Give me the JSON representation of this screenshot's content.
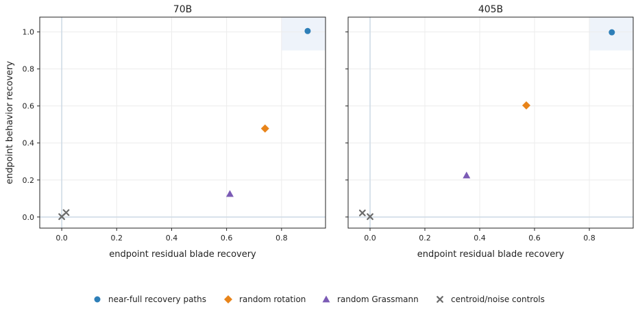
{
  "figure": {
    "legend": [
      {
        "label": "near-full recovery paths",
        "marker": "circle",
        "color": "#2e7fb8"
      },
      {
        "label": "random rotation",
        "marker": "diamond",
        "color": "#e8841a"
      },
      {
        "label": "random Grassmann",
        "marker": "triangle",
        "color": "#7b5bb5"
      },
      {
        "label": "centroid/noise controls",
        "marker": "x",
        "color": "#6b6b6b"
      }
    ],
    "legend_placement": "bottom-center"
  },
  "chart_data": [
    {
      "type": "scatter",
      "title": "70B",
      "xlabel": "endpoint residual blade recovery",
      "ylabel": "endpoint behavior recovery",
      "xlim": [
        -0.08,
        0.96
      ],
      "ylim": [
        -0.06,
        1.08
      ],
      "xticks": [
        "0.0",
        "0.2",
        "0.4",
        "0.6",
        "0.8"
      ],
      "yticks": [
        "0.0",
        "0.2",
        "0.4",
        "0.6",
        "0.8",
        "1.0"
      ],
      "xtick_values": [
        0.0,
        0.2,
        0.4,
        0.6,
        0.8
      ],
      "ytick_values": [
        0.0,
        0.2,
        0.4,
        0.6,
        0.8,
        1.0
      ],
      "grid": true,
      "highlight_region": {
        "x": [
          0.8,
          0.96
        ],
        "y": [
          0.9,
          1.08
        ]
      },
      "reference_lines": {
        "x": 0,
        "y": 0
      },
      "series": [
        {
          "name": "near-full recovery paths",
          "points": [
            [
              0.895,
              1.005
            ]
          ]
        },
        {
          "name": "random rotation",
          "points": [
            [
              0.74,
              0.478
            ]
          ]
        },
        {
          "name": "random Grassmann",
          "points": [
            [
              0.612,
              0.125
            ]
          ]
        },
        {
          "name": "centroid/noise controls",
          "points": [
            [
              0.0,
              0.002
            ],
            [
              0.016,
              0.024
            ]
          ]
        }
      ]
    },
    {
      "type": "scatter",
      "title": "405B",
      "xlabel": "endpoint residual blade recovery",
      "ylabel": "",
      "xlim": [
        -0.08,
        0.96
      ],
      "ylim": [
        -0.06,
        1.08
      ],
      "xticks": [
        "0.0",
        "0.2",
        "0.4",
        "0.6",
        "0.8"
      ],
      "yticks": [],
      "xtick_values": [
        0.0,
        0.2,
        0.4,
        0.6,
        0.8
      ],
      "ytick_values": [
        0.0,
        0.2,
        0.4,
        0.6,
        0.8,
        1.0
      ],
      "grid": true,
      "highlight_region": {
        "x": [
          0.8,
          0.96
        ],
        "y": [
          0.9,
          1.08
        ]
      },
      "reference_lines": {
        "x": 0,
        "y": 0
      },
      "series": [
        {
          "name": "near-full recovery paths",
          "points": [
            [
              0.882,
              0.998
            ]
          ]
        },
        {
          "name": "random rotation",
          "points": [
            [
              0.57,
              0.603
            ]
          ]
        },
        {
          "name": "random Grassmann",
          "points": [
            [
              0.352,
              0.225
            ]
          ]
        },
        {
          "name": "centroid/noise controls",
          "points": [
            [
              -0.028,
              0.022
            ],
            [
              0.0,
              0.002
            ]
          ]
        }
      ]
    }
  ]
}
